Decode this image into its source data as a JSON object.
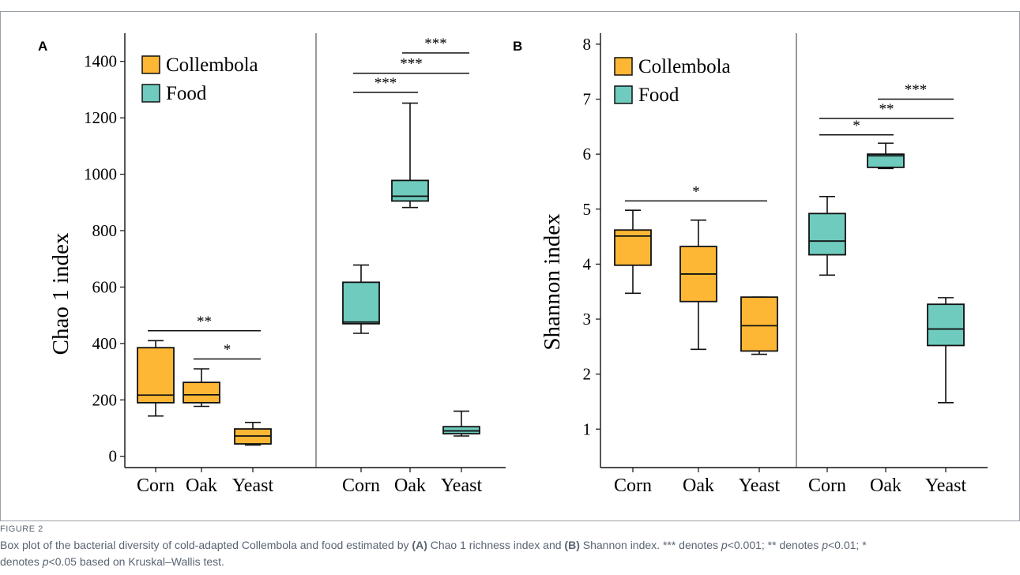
{
  "colors": {
    "collembola": "#FDB735",
    "food": "#6ECBBE",
    "stroke": "#111111",
    "caption": "#5a6472",
    "frame": "#9aa0a6"
  },
  "chart_data": [
    {
      "type": "box",
      "panel_letter": "A",
      "ylabel": "Chao 1 index",
      "ylim": [
        -40,
        1500
      ],
      "yticks": [
        0,
        200,
        400,
        600,
        800,
        1000,
        1200,
        1400
      ],
      "categories": [
        "Corn",
        "Oak",
        "Yeast",
        "Corn",
        "Oak",
        "Yeast"
      ],
      "legend": {
        "placement": "top-left",
        "entries": [
          {
            "label": "Collembola",
            "color": "#FDB735"
          },
          {
            "label": "Food",
            "color": "#6ECBBE"
          }
        ]
      },
      "series": [
        {
          "name": "Collembola",
          "color": "#FDB735",
          "boxes": [
            {
              "category": "Corn",
              "min": 143,
              "q1": 190,
              "median": 217,
              "q3": 385,
              "max": 410
            },
            {
              "category": "Oak",
              "min": 177,
              "q1": 190,
              "median": 218,
              "q3": 262,
              "max": 310
            },
            {
              "category": "Yeast",
              "min": 40,
              "q1": 44,
              "median": 72,
              "q3": 97,
              "max": 120
            }
          ]
        },
        {
          "name": "Food",
          "color": "#6ECBBE",
          "boxes": [
            {
              "category": "Corn",
              "min": 436,
              "q1": 470,
              "median": 476,
              "q3": 617,
              "max": 678
            },
            {
              "category": "Oak",
              "min": 882,
              "q1": 905,
              "median": 922,
              "q3": 978,
              "max": 1252
            },
            {
              "category": "Yeast",
              "min": 72,
              "q1": 80,
              "median": 90,
              "q3": 105,
              "max": 160
            }
          ]
        }
      ],
      "significance": [
        {
          "from": 0,
          "to": 2,
          "y": 445,
          "label": "**"
        },
        {
          "from": 1,
          "to": 2,
          "y": 345,
          "label": "*"
        },
        {
          "from": 3,
          "to": 4,
          "y": 1290,
          "label": "***"
        },
        {
          "from": 3,
          "to": 5,
          "y": 1358,
          "label": "***"
        },
        {
          "from": 4,
          "to": 5,
          "y": 1430,
          "label": "***"
        }
      ]
    },
    {
      "type": "box",
      "panel_letter": "B",
      "ylabel": "Shannon index",
      "ylim": [
        0.3,
        8.2
      ],
      "yticks": [
        1,
        2,
        3,
        4,
        5,
        6,
        7,
        8
      ],
      "categories": [
        "Corn",
        "Oak",
        "Yeast",
        "Corn",
        "Oak",
        "Yeast"
      ],
      "legend": {
        "placement": "top-left",
        "entries": [
          {
            "label": "Collembola",
            "color": "#FDB735"
          },
          {
            "label": "Food",
            "color": "#6ECBBE"
          }
        ]
      },
      "series": [
        {
          "name": "Collembola",
          "color": "#FDB735",
          "boxes": [
            {
              "category": "Corn",
              "min": 3.47,
              "q1": 3.98,
              "median": 4.51,
              "q3": 4.62,
              "max": 4.98
            },
            {
              "category": "Oak",
              "min": 2.45,
              "q1": 3.32,
              "median": 3.82,
              "q3": 4.32,
              "max": 4.8
            },
            {
              "category": "Yeast",
              "min": 2.36,
              "q1": 2.42,
              "median": 2.88,
              "q3": 3.4,
              "max": 3.4
            }
          ]
        },
        {
          "name": "Food",
          "color": "#6ECBBE",
          "boxes": [
            {
              "category": "Corn",
              "min": 3.8,
              "q1": 4.17,
              "median": 4.42,
              "q3": 4.92,
              "max": 5.23
            },
            {
              "category": "Oak",
              "min": 5.74,
              "q1": 5.76,
              "median": 5.97,
              "q3": 6.0,
              "max": 6.2
            },
            {
              "category": "Yeast",
              "min": 1.48,
              "q1": 2.52,
              "median": 2.82,
              "q3": 3.27,
              "max": 3.39
            }
          ]
        }
      ],
      "significance": [
        {
          "from": 0,
          "to": 2,
          "y": 5.15,
          "label": "*"
        },
        {
          "from": 3,
          "to": 4,
          "y": 6.35,
          "label": "*"
        },
        {
          "from": 3,
          "to": 5,
          "y": 6.65,
          "label": "**"
        },
        {
          "from": 4,
          "to": 5,
          "y": 7.0,
          "label": "***"
        }
      ]
    }
  ],
  "caption": {
    "label": "FIGURE 2",
    "text": "Box plot of the bacterial diversity of cold-adapted Collembola and food estimated by (A) Chao 1 richness index and (B) Shannon index. *** denotes p<0.001; ** denotes p<0.01; * denotes p<0.05 based on Kruskal–Wallis test."
  }
}
